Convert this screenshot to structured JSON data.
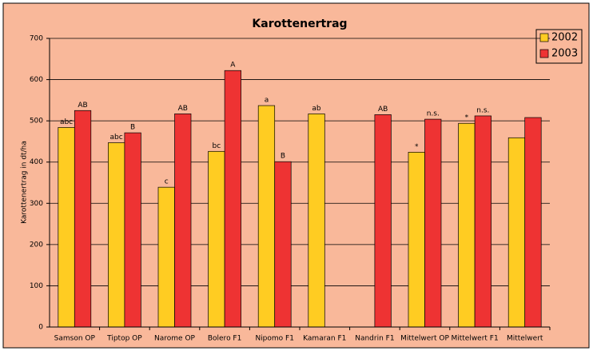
{
  "chart_data": {
    "type": "bar",
    "title": "Karottenertrag",
    "y_label": "Karottenertrag in dt/ha",
    "categories": [
      "Samson OP",
      "Tiptop OP",
      "Narome OP",
      "Bolero F1",
      "Nipomo F1",
      "Kamaran F1",
      "Nandrin F1",
      "Mittelwert OP",
      "Mittelwert F1",
      "Mittelwert"
    ],
    "series": [
      {
        "name": "2002",
        "color": "#ffcc22",
        "values": [
          484,
          447,
          339,
          426,
          537,
          517,
          null,
          424,
          494,
          459
        ],
        "letters": [
          "abc",
          "abc",
          "c",
          "bc",
          "a",
          "ab",
          null,
          "*",
          "*",
          null
        ]
      },
      {
        "name": "2003",
        "color": "#ee3333",
        "values": [
          525,
          471,
          517,
          622,
          401,
          null,
          515,
          504,
          512,
          508
        ],
        "letters": [
          "AB",
          "B",
          "AB",
          "A",
          "B",
          null,
          "AB",
          "n.s.",
          "n.s.",
          null
        ]
      }
    ],
    "ylim": [
      0,
      700
    ],
    "yticks": [
      0,
      100,
      200,
      300,
      400,
      500,
      600,
      700
    ],
    "grid": true,
    "legend": "top-right"
  }
}
